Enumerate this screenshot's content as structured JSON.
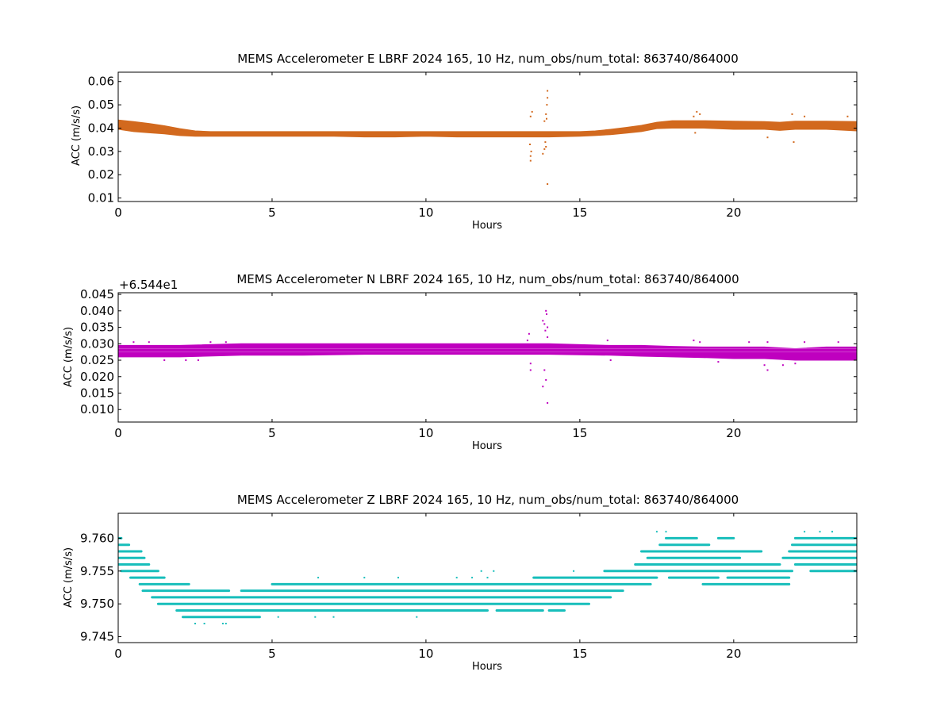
{
  "chart_data": [
    {
      "type": "scatter",
      "title": "MEMS Accelerometer E LBRF 2024 165, 10 Hz, num_obs/num_total: 863740/864000",
      "xlabel": "Hours",
      "ylabel": "ACC (m/s/s)",
      "offset_label": "",
      "color": "#d2691e",
      "xlim": [
        0,
        24
      ],
      "ylim": [
        0.0085,
        0.064
      ],
      "x_ticks": [
        0,
        5,
        10,
        15,
        20
      ],
      "x_tick_labels": [
        "0",
        "5",
        "10",
        "15",
        "20"
      ],
      "y_ticks": [
        0.01,
        0.02,
        0.03,
        0.04,
        0.05,
        0.06
      ],
      "y_tick_labels": [
        "0.01",
        "0.02",
        "0.03",
        "0.04",
        "0.05",
        "0.06"
      ],
      "grid": false,
      "band": {
        "x": [
          0,
          0.5,
          1,
          1.5,
          2,
          2.5,
          3,
          4,
          5,
          6,
          7,
          8,
          9,
          10,
          11,
          12,
          13,
          14,
          15,
          15.5,
          16,
          16.5,
          17,
          17.5,
          18,
          19,
          20,
          21,
          21.5,
          22,
          23,
          24
        ],
        "lower": [
          0.0395,
          0.0385,
          0.038,
          0.0375,
          0.0368,
          0.0365,
          0.0365,
          0.0365,
          0.0365,
          0.0365,
          0.0365,
          0.0362,
          0.0362,
          0.0365,
          0.0362,
          0.0362,
          0.0362,
          0.0362,
          0.0365,
          0.0368,
          0.0372,
          0.0378,
          0.0385,
          0.0398,
          0.04,
          0.04,
          0.0395,
          0.0395,
          0.039,
          0.0395,
          0.0395,
          0.0388
        ],
        "upper": [
          0.0435,
          0.0428,
          0.042,
          0.041,
          0.0398,
          0.0388,
          0.0385,
          0.0385,
          0.0385,
          0.0385,
          0.0385,
          0.0385,
          0.0385,
          0.0385,
          0.0385,
          0.0385,
          0.0385,
          0.0385,
          0.0385,
          0.0388,
          0.0395,
          0.0403,
          0.0412,
          0.0425,
          0.0432,
          0.0432,
          0.043,
          0.0428,
          0.0425,
          0.043,
          0.043,
          0.0428
        ]
      },
      "scatter": [
        {
          "x": 13.4,
          "y": 0.026
        },
        {
          "x": 13.4,
          "y": 0.028
        },
        {
          "x": 13.42,
          "y": 0.03
        },
        {
          "x": 13.38,
          "y": 0.033
        },
        {
          "x": 13.4,
          "y": 0.045
        },
        {
          "x": 13.45,
          "y": 0.047
        },
        {
          "x": 13.8,
          "y": 0.029
        },
        {
          "x": 13.85,
          "y": 0.031
        },
        {
          "x": 13.9,
          "y": 0.032
        },
        {
          "x": 13.88,
          "y": 0.034
        },
        {
          "x": 13.92,
          "y": 0.044
        },
        {
          "x": 13.9,
          "y": 0.046
        },
        {
          "x": 13.93,
          "y": 0.05
        },
        {
          "x": 13.95,
          "y": 0.053
        },
        {
          "x": 13.95,
          "y": 0.056
        },
        {
          "x": 13.95,
          "y": 0.016
        },
        {
          "x": 13.85,
          "y": 0.043
        },
        {
          "x": 18.7,
          "y": 0.045
        },
        {
          "x": 18.8,
          "y": 0.047
        },
        {
          "x": 18.75,
          "y": 0.038
        },
        {
          "x": 21.1,
          "y": 0.036
        },
        {
          "x": 21.9,
          "y": 0.046
        },
        {
          "x": 21.95,
          "y": 0.034
        },
        {
          "x": 22.3,
          "y": 0.045
        },
        {
          "x": 23.7,
          "y": 0.045
        },
        {
          "x": 18.9,
          "y": 0.046
        }
      ]
    },
    {
      "type": "scatter",
      "title": "MEMS Accelerometer N LBRF 2024 165, 10 Hz, num_obs/num_total: 863740/864000",
      "xlabel": "Hours",
      "ylabel": "ACC (m/s/s)",
      "offset_label": "+6.544e1",
      "color": "#bf00bf",
      "xlim": [
        0,
        24
      ],
      "ylim": [
        0.0062,
        0.0455
      ],
      "x_ticks": [
        0,
        5,
        10,
        15,
        20
      ],
      "x_tick_labels": [
        "0",
        "5",
        "10",
        "15",
        "20"
      ],
      "y_ticks": [
        0.01,
        0.015,
        0.02,
        0.025,
        0.03,
        0.035,
        0.04,
        0.045
      ],
      "y_tick_labels": [
        "0.010",
        "0.015",
        "0.020",
        "0.025",
        "0.030",
        "0.035",
        "0.040",
        "0.045"
      ],
      "grid": false,
      "band": {
        "x": [
          0,
          2,
          4,
          6,
          8,
          10,
          12,
          14,
          16,
          17,
          18,
          19,
          20,
          21,
          22,
          23,
          24
        ],
        "lower": [
          0.026,
          0.026,
          0.0265,
          0.0265,
          0.0268,
          0.0268,
          0.0268,
          0.0268,
          0.0265,
          0.0262,
          0.026,
          0.0258,
          0.0255,
          0.0255,
          0.025,
          0.025,
          0.025
        ],
        "upper": [
          0.0295,
          0.0295,
          0.03,
          0.03,
          0.03,
          0.03,
          0.03,
          0.03,
          0.0295,
          0.0295,
          0.0292,
          0.029,
          0.029,
          0.029,
          0.0285,
          0.029,
          0.029
        ]
      },
      "scatter": [
        {
          "x": 0.5,
          "y": 0.0305
        },
        {
          "x": 1.0,
          "y": 0.0305
        },
        {
          "x": 1.5,
          "y": 0.025
        },
        {
          "x": 2.2,
          "y": 0.025
        },
        {
          "x": 2.6,
          "y": 0.025
        },
        {
          "x": 3.0,
          "y": 0.0305
        },
        {
          "x": 3.5,
          "y": 0.0305
        },
        {
          "x": 13.3,
          "y": 0.031
        },
        {
          "x": 13.35,
          "y": 0.033
        },
        {
          "x": 13.4,
          "y": 0.024
        },
        {
          "x": 13.4,
          "y": 0.022
        },
        {
          "x": 13.8,
          "y": 0.037
        },
        {
          "x": 13.85,
          "y": 0.036
        },
        {
          "x": 13.9,
          "y": 0.04
        },
        {
          "x": 13.92,
          "y": 0.039
        },
        {
          "x": 13.88,
          "y": 0.034
        },
        {
          "x": 13.8,
          "y": 0.017
        },
        {
          "x": 13.9,
          "y": 0.019
        },
        {
          "x": 13.95,
          "y": 0.012
        },
        {
          "x": 13.85,
          "y": 0.022
        },
        {
          "x": 13.95,
          "y": 0.035
        },
        {
          "x": 13.95,
          "y": 0.032
        },
        {
          "x": 15.9,
          "y": 0.031
        },
        {
          "x": 16.0,
          "y": 0.025
        },
        {
          "x": 18.7,
          "y": 0.031
        },
        {
          "x": 18.9,
          "y": 0.0305
        },
        {
          "x": 19.5,
          "y": 0.0245
        },
        {
          "x": 20.5,
          "y": 0.0305
        },
        {
          "x": 21.0,
          "y": 0.0235
        },
        {
          "x": 21.1,
          "y": 0.022
        },
        {
          "x": 21.1,
          "y": 0.0305
        },
        {
          "x": 21.6,
          "y": 0.0235
        },
        {
          "x": 22.0,
          "y": 0.024
        },
        {
          "x": 22.3,
          "y": 0.0305
        },
        {
          "x": 23.4,
          "y": 0.0305
        }
      ]
    },
    {
      "type": "scatter",
      "title": "MEMS Accelerometer Z LBRF 2024 165, 10 Hz, num_obs/num_total: 863740/864000",
      "xlabel": "Hours",
      "ylabel": "ACC (m/s/s)",
      "offset_label": "",
      "color": "#17bebb",
      "xlim": [
        0,
        24
      ],
      "ylim": [
        9.7441,
        9.7638
      ],
      "x_ticks": [
        0,
        5,
        10,
        15,
        20
      ],
      "x_tick_labels": [
        "0",
        "5",
        "10",
        "15",
        "20"
      ],
      "y_ticks": [
        9.745,
        9.75,
        9.755,
        9.76
      ],
      "y_tick_labels": [
        "9.745",
        "9.750",
        "9.755",
        "9.760"
      ],
      "grid": false,
      "levels": [
        {
          "y": 9.76,
          "segments": [
            [
              0,
              0.1
            ],
            [
              17.8,
              18.8
            ],
            [
              19.5,
              20.0
            ],
            [
              22.0,
              24.0
            ]
          ]
        },
        {
          "y": 9.759,
          "segments": [
            [
              0,
              0.35
            ],
            [
              17.6,
              19.2
            ],
            [
              21.9,
              24.0
            ]
          ]
        },
        {
          "y": 9.758,
          "segments": [
            [
              0,
              0.75
            ],
            [
              17.0,
              20.9
            ],
            [
              21.8,
              24.0
            ]
          ]
        },
        {
          "y": 9.757,
          "segments": [
            [
              0,
              0.85
            ],
            [
              17.2,
              20.2
            ],
            [
              21.6,
              24.0
            ]
          ]
        },
        {
          "y": 9.756,
          "segments": [
            [
              0,
              1.0
            ],
            [
              16.8,
              21.5
            ],
            [
              22.0,
              24.0
            ]
          ]
        },
        {
          "y": 9.755,
          "segments": [
            [
              0.1,
              1.3
            ],
            [
              15.8,
              21.9
            ],
            [
              22.5,
              24.0
            ]
          ]
        },
        {
          "y": 9.754,
          "segments": [
            [
              0.4,
              1.5
            ],
            [
              13.5,
              17.5
            ],
            [
              17.9,
              19.5
            ],
            [
              19.8,
              21.8
            ]
          ]
        },
        {
          "y": 9.753,
          "segments": [
            [
              0.7,
              2.3
            ],
            [
              5.0,
              17.3
            ],
            [
              19.0,
              21.8
            ]
          ]
        },
        {
          "y": 9.752,
          "segments": [
            [
              0.8,
              3.6
            ],
            [
              4.0,
              16.4
            ]
          ]
        },
        {
          "y": 9.751,
          "segments": [
            [
              1.1,
              16.0
            ]
          ]
        },
        {
          "y": 9.75,
          "segments": [
            [
              1.3,
              15.3
            ]
          ]
        },
        {
          "y": 9.749,
          "segments": [
            [
              1.9,
              12.0
            ],
            [
              12.3,
              13.8
            ],
            [
              14.0,
              14.5
            ]
          ]
        },
        {
          "y": 9.748,
          "segments": [
            [
              2.1,
              4.6
            ]
          ]
        }
      ],
      "scatter": [
        {
          "x": 2.5,
          "y": 9.747
        },
        {
          "x": 2.8,
          "y": 9.747
        },
        {
          "x": 3.4,
          "y": 9.747
        },
        {
          "x": 3.5,
          "y": 9.747
        },
        {
          "x": 5.2,
          "y": 9.748
        },
        {
          "x": 6.4,
          "y": 9.748
        },
        {
          "x": 7.0,
          "y": 9.748
        },
        {
          "x": 9.7,
          "y": 9.748
        },
        {
          "x": 6.5,
          "y": 9.754
        },
        {
          "x": 8.0,
          "y": 9.754
        },
        {
          "x": 9.1,
          "y": 9.754
        },
        {
          "x": 11.0,
          "y": 9.754
        },
        {
          "x": 11.5,
          "y": 9.754
        },
        {
          "x": 12.0,
          "y": 9.754
        },
        {
          "x": 11.8,
          "y": 9.755
        },
        {
          "x": 12.2,
          "y": 9.755
        },
        {
          "x": 14.8,
          "y": 9.755
        },
        {
          "x": 17.5,
          "y": 9.761
        },
        {
          "x": 17.8,
          "y": 9.761
        },
        {
          "x": 22.3,
          "y": 9.761
        },
        {
          "x": 22.8,
          "y": 9.761
        },
        {
          "x": 23.2,
          "y": 9.761
        }
      ]
    }
  ]
}
